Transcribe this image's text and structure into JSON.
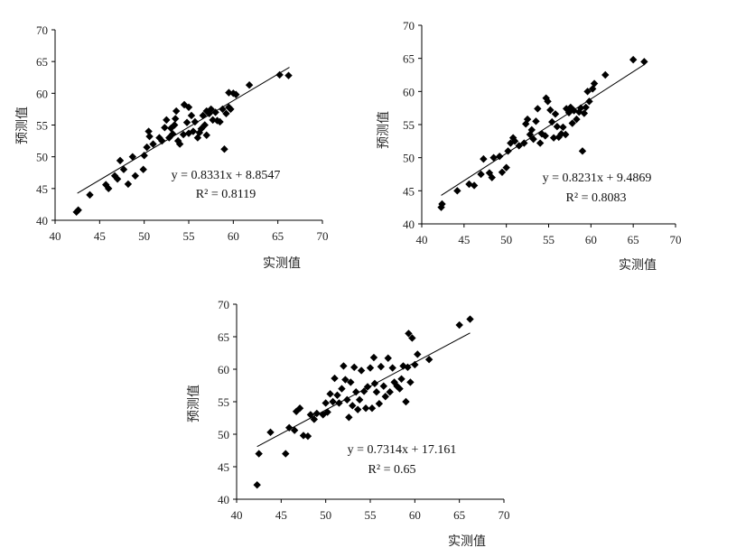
{
  "chart_data": [
    {
      "type": "scatter",
      "xlabel": "实测值",
      "ylabel": "预测值",
      "xlim": [
        40,
        70
      ],
      "ylim": [
        40,
        70
      ],
      "x_ticks": [
        "40",
        "45",
        "50",
        "55",
        "60",
        "65",
        "70"
      ],
      "y_ticks": [
        "40",
        "45",
        "50",
        "55",
        "60",
        "65",
        "70"
      ],
      "equation": "y = 0.8331x + 8.8547",
      "r2_label": "R² = 0.8119",
      "trendline": {
        "slope": 0.8331,
        "intercept": 8.8547,
        "x_range": [
          42.5,
          66.3
        ]
      },
      "points": [
        [
          42.4,
          41.3
        ],
        [
          42.6,
          41.6
        ],
        [
          43.9,
          44
        ],
        [
          45.7,
          45.6
        ],
        [
          46,
          45
        ],
        [
          46.7,
          47
        ],
        [
          47,
          46.5
        ],
        [
          47.3,
          49.4
        ],
        [
          47.7,
          48
        ],
        [
          48.2,
          45.7
        ],
        [
          48.7,
          50
        ],
        [
          49,
          47
        ],
        [
          49.9,
          48
        ],
        [
          50,
          50.2
        ],
        [
          50.3,
          51.5
        ],
        [
          50.6,
          53.2
        ],
        [
          50.5,
          54
        ],
        [
          51,
          52
        ],
        [
          51.7,
          53
        ],
        [
          52,
          52.5
        ],
        [
          52.3,
          54.6
        ],
        [
          52.5,
          55.8
        ],
        [
          52.8,
          53
        ],
        [
          53,
          54.5
        ],
        [
          53.2,
          53.6
        ],
        [
          53.4,
          55
        ],
        [
          53.5,
          56
        ],
        [
          53.6,
          57.2
        ],
        [
          53.8,
          52.5
        ],
        [
          54,
          52
        ],
        [
          54.4,
          53.5
        ],
        [
          54.5,
          58.2
        ],
        [
          54.8,
          55.4
        ],
        [
          55,
          57.8
        ],
        [
          55,
          53.7
        ],
        [
          55.3,
          56.5
        ],
        [
          55.5,
          54
        ],
        [
          55.7,
          55.5
        ],
        [
          56,
          53
        ],
        [
          56.2,
          53.8
        ],
        [
          56.4,
          54.4
        ],
        [
          56.6,
          56.5
        ],
        [
          56.8,
          55
        ],
        [
          57,
          53.4
        ],
        [
          57,
          57.2
        ],
        [
          57.3,
          56.8
        ],
        [
          57.5,
          57.5
        ],
        [
          57.7,
          55.8
        ],
        [
          58,
          57
        ],
        [
          58.2,
          55.7
        ],
        [
          58.5,
          55.5
        ],
        [
          58.8,
          57.5
        ],
        [
          59,
          51.2
        ],
        [
          59.2,
          56.8
        ],
        [
          59.5,
          60.1
        ],
        [
          59.5,
          57.8
        ],
        [
          59.7,
          57.5
        ],
        [
          60,
          60
        ],
        [
          60.3,
          59.8
        ],
        [
          61.8,
          61.3
        ],
        [
          65.2,
          62.9
        ],
        [
          66.2,
          62.8
        ]
      ]
    },
    {
      "type": "scatter",
      "xlabel": "实测值",
      "ylabel": "预测值",
      "xlim": [
        40,
        70
      ],
      "ylim": [
        40,
        70
      ],
      "x_ticks": [
        "40",
        "45",
        "50",
        "55",
        "60",
        "65",
        "70"
      ],
      "y_ticks": [
        "40",
        "45",
        "50",
        "55",
        "60",
        "65",
        "70"
      ],
      "equation": "y = 0.8231x + 9.4869",
      "r2_label": "R² = 0.8083",
      "trendline": {
        "slope": 0.8231,
        "intercept": 9.4869,
        "x_range": [
          42.3,
          66.3
        ]
      },
      "points": [
        [
          42.3,
          42.5
        ],
        [
          42.4,
          43
        ],
        [
          44.2,
          45
        ],
        [
          45.6,
          46
        ],
        [
          46.2,
          45.8
        ],
        [
          47,
          47.5
        ],
        [
          47.3,
          49.8
        ],
        [
          48,
          47.7
        ],
        [
          48.3,
          47
        ],
        [
          48.5,
          50
        ],
        [
          49.2,
          50.2
        ],
        [
          49.5,
          47.8
        ],
        [
          50,
          48.5
        ],
        [
          50.2,
          51
        ],
        [
          50.5,
          52.2
        ],
        [
          50.8,
          53
        ],
        [
          51,
          52.5
        ],
        [
          51.5,
          51.8
        ],
        [
          52.1,
          52.2
        ],
        [
          52.3,
          55.1
        ],
        [
          52.5,
          55.8
        ],
        [
          52.8,
          53.5
        ],
        [
          53,
          54.2
        ],
        [
          53.2,
          52.8
        ],
        [
          53.5,
          55.5
        ],
        [
          53.7,
          57.4
        ],
        [
          54,
          52.2
        ],
        [
          54.2,
          53.6
        ],
        [
          54.6,
          53.3
        ],
        [
          54.7,
          59
        ],
        [
          54.9,
          58.5
        ],
        [
          55.2,
          57.2
        ],
        [
          55.4,
          55.4
        ],
        [
          55.6,
          53
        ],
        [
          55.8,
          56.6
        ],
        [
          56,
          54.7
        ],
        [
          56.2,
          53.1
        ],
        [
          56.5,
          53.6
        ],
        [
          56.7,
          54.6
        ],
        [
          57,
          53.5
        ],
        [
          57.1,
          57.4
        ],
        [
          57.4,
          56.8
        ],
        [
          57.6,
          57.6
        ],
        [
          57.8,
          55.2
        ],
        [
          58,
          57.1
        ],
        [
          58.3,
          55.8
        ],
        [
          58.6,
          56.9
        ],
        [
          58.8,
          57.5
        ],
        [
          59,
          51
        ],
        [
          59.2,
          56.7
        ],
        [
          59.4,
          57.6
        ],
        [
          59.6,
          60
        ],
        [
          59.8,
          58.5
        ],
        [
          60.2,
          60.4
        ],
        [
          60.4,
          61.2
        ],
        [
          61.7,
          62.5
        ],
        [
          65,
          64.8
        ],
        [
          66.3,
          64.5
        ]
      ]
    },
    {
      "type": "scatter",
      "xlabel": "实测值",
      "ylabel": "预测值",
      "xlim": [
        40,
        70
      ],
      "ylim": [
        40,
        70
      ],
      "x_ticks": [
        "40",
        "45",
        "50",
        "55",
        "60",
        "65",
        "70"
      ],
      "y_ticks": [
        "40",
        "45",
        "50",
        "55",
        "60",
        "65",
        "70"
      ],
      "equation": "y = 0.7314x + 17.161",
      "r2_label": "R² = 0.65",
      "trendline": {
        "slope": 0.7314,
        "intercept": 17.161,
        "x_range": [
          42.3,
          66.2
        ]
      },
      "points": [
        [
          42.3,
          42.2
        ],
        [
          42.5,
          47
        ],
        [
          43.8,
          50.3
        ],
        [
          45.5,
          47
        ],
        [
          45.9,
          51
        ],
        [
          46.5,
          50.6
        ],
        [
          46.7,
          53.5
        ],
        [
          47.1,
          54
        ],
        [
          47.5,
          49.8
        ],
        [
          48,
          49.7
        ],
        [
          48.3,
          53
        ],
        [
          48.7,
          52.3
        ],
        [
          49,
          53.2
        ],
        [
          49.7,
          53
        ],
        [
          50,
          54.8
        ],
        [
          50.2,
          53.4
        ],
        [
          50.5,
          56.2
        ],
        [
          50.8,
          55
        ],
        [
          51,
          58.6
        ],
        [
          51.3,
          56
        ],
        [
          51.5,
          54.8
        ],
        [
          51.8,
          57
        ],
        [
          52,
          60.5
        ],
        [
          52.2,
          58.4
        ],
        [
          52.4,
          55.3
        ],
        [
          52.6,
          52.6
        ],
        [
          52.8,
          58
        ],
        [
          53,
          54.4
        ],
        [
          53.2,
          60.3
        ],
        [
          53.4,
          56.5
        ],
        [
          53.6,
          53.8
        ],
        [
          53.8,
          55.3
        ],
        [
          54,
          59.8
        ],
        [
          54.3,
          56.6
        ],
        [
          54.5,
          54
        ],
        [
          54.7,
          57.3
        ],
        [
          55,
          60.2
        ],
        [
          55.2,
          54
        ],
        [
          55.4,
          61.8
        ],
        [
          55.5,
          57.8
        ],
        [
          55.7,
          56.5
        ],
        [
          56,
          54.7
        ],
        [
          56.2,
          60.4
        ],
        [
          56.5,
          57.4
        ],
        [
          56.7,
          55.8
        ],
        [
          57,
          61.7
        ],
        [
          57.2,
          56.5
        ],
        [
          57.5,
          60.2
        ],
        [
          57.7,
          58
        ],
        [
          58,
          57.4
        ],
        [
          58.3,
          57
        ],
        [
          58.5,
          58.5
        ],
        [
          58.7,
          60.5
        ],
        [
          59,
          55
        ],
        [
          59.2,
          60.3
        ],
        [
          59.3,
          65.5
        ],
        [
          59.5,
          58
        ],
        [
          59.7,
          64.8
        ],
        [
          60,
          60.7
        ],
        [
          60.3,
          62.3
        ],
        [
          61.6,
          61.5
        ],
        [
          65,
          66.8
        ],
        [
          66.2,
          67.7
        ]
      ]
    }
  ]
}
